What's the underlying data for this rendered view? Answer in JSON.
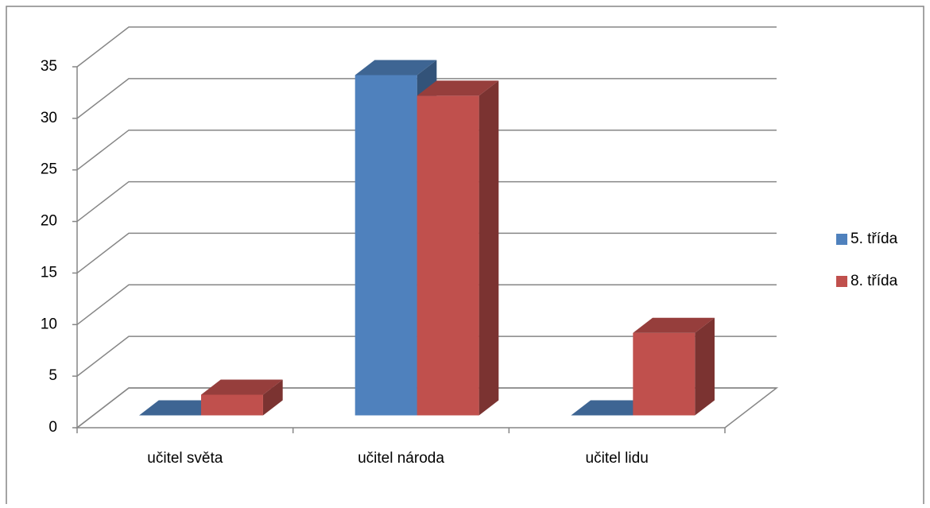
{
  "chart_data": {
    "type": "bar3d",
    "categories": [
      "učitel světa",
      "učitel národa",
      "učitel lidu"
    ],
    "series": [
      {
        "name": "5. třída",
        "color": "#4f81bd",
        "values": [
          0,
          33,
          0
        ]
      },
      {
        "name": "8. třída",
        "color": "#c0504d",
        "values": [
          2,
          31,
          8
        ]
      }
    ],
    "ylim": [
      0,
      35
    ],
    "yticks": [
      0,
      5,
      10,
      15,
      20,
      25,
      30,
      35
    ],
    "grid": true,
    "legend": "right"
  }
}
